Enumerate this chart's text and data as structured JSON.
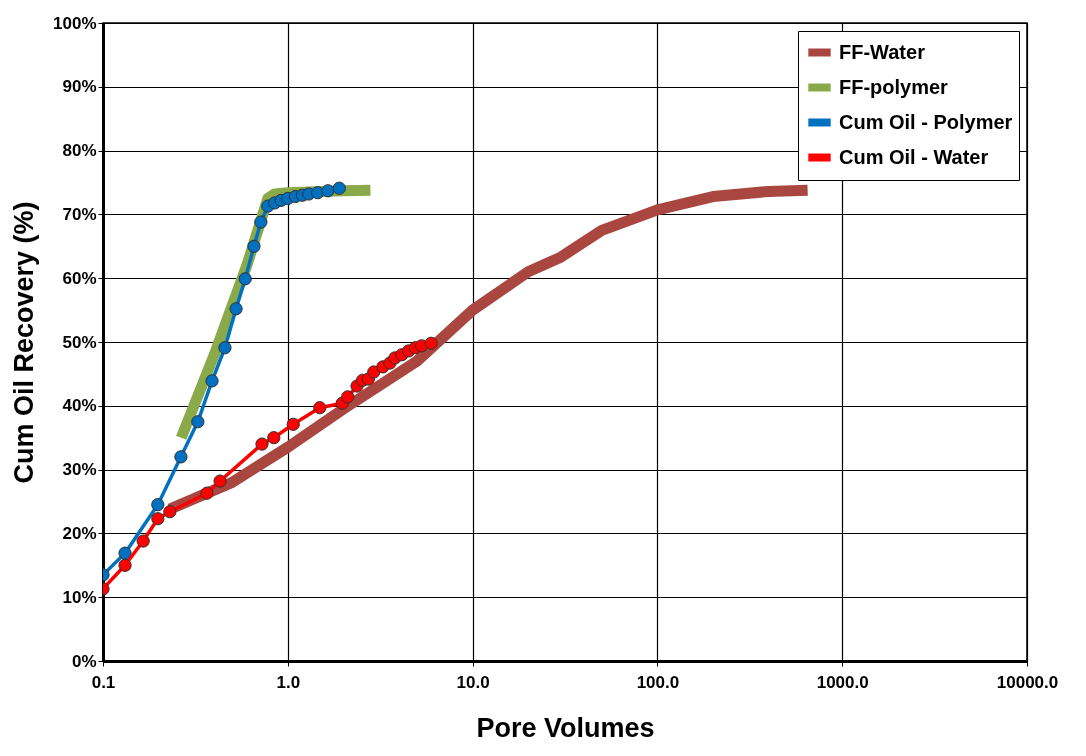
{
  "chart_data": {
    "type": "line",
    "xlabel": "Pore Volumes",
    "ylabel": "Cum  Oil Recovery (%)",
    "log": "x",
    "grid": true,
    "legend": "top right",
    "xlim": [
      0.1,
      10000
    ],
    "xticks": [
      0.1,
      {
        "value": 1,
        "label": "1.0"
      },
      {
        "value": 10,
        "label": "10.0"
      },
      {
        "value": 100,
        "label": "100.0"
      },
      {
        "value": 1000,
        "label": "1000.0"
      },
      {
        "value": 10000,
        "label": "10000.0"
      }
    ],
    "ylim": [
      0,
      100
    ],
    "yticks": [
      {
        "value": 0,
        "label": "0%"
      },
      {
        "value": 10,
        "label": "10%"
      },
      {
        "value": 20,
        "label": "20%"
      },
      {
        "value": 30,
        "label": "30%"
      },
      {
        "value": 40,
        "label": "40%"
      },
      {
        "value": 50,
        "label": "50%"
      },
      {
        "value": 60,
        "label": "60%"
      },
      {
        "value": 70,
        "label": "70%"
      },
      {
        "value": 80,
        "label": "80%"
      },
      {
        "value": 90,
        "label": "90%"
      },
      {
        "value": 100,
        "label": "100%"
      }
    ],
    "series": [
      {
        "name": "FF-Water",
        "color": "#a9463f",
        "marker": "none",
        "x": [
          0.23,
          0.5,
          1,
          2,
          5,
          10,
          20,
          30,
          50,
          100,
          200,
          400,
          650
        ],
        "values": [
          23.8,
          28,
          33.5,
          39.5,
          47,
          55,
          61,
          63.3,
          67.5,
          70.7,
          72.8,
          73.6,
          73.8
        ]
      },
      {
        "name": "FF-polymer",
        "color": "#8aaa4a",
        "marker": "none",
        "x": [
          0.265,
          0.4,
          0.6,
          0.78,
          0.85,
          1.0,
          2.0,
          2.8
        ],
        "values": [
          35,
          48,
          62,
          72.5,
          73.2,
          73.4,
          73.7,
          73.8
        ]
      },
      {
        "name": "Cum Oil - Polymer",
        "color": "#0070c0",
        "marker": "circle",
        "x": [
          0.1,
          0.1316,
          0.198,
          0.264,
          0.326,
          0.389,
          0.457,
          0.525,
          0.588,
          0.656,
          0.715,
          0.78,
          0.85,
          0.92,
          1.0,
          1.1,
          1.2,
          1.3,
          1.45,
          1.65,
          1.9
        ],
        "values": [
          13.5,
          16.9,
          24.5,
          32,
          37.5,
          43.9,
          49.1,
          55.2,
          59.9,
          65,
          68.8,
          71.3,
          71.8,
          72.2,
          72.5,
          72.8,
          73,
          73.2,
          73.4,
          73.7,
          74.1
        ]
      },
      {
        "name": "Cum Oil - Water",
        "color": "#ff0000",
        "marker": "circle",
        "x": [
          0.1,
          0.1316,
          0.165,
          0.198,
          0.23,
          0.365,
          0.43,
          0.725,
          0.84,
          1.07,
          1.49,
          1.97,
          2.11,
          2.37,
          2.54,
          2.73,
          2.92,
          3.27,
          3.57,
          3.8,
          4.14,
          4.5,
          4.9,
          5.3,
          5.97
        ],
        "values": [
          11.3,
          15,
          18.8,
          22.3,
          23.4,
          26.3,
          28.2,
          34,
          35,
          37.1,
          39.7,
          40.4,
          41.4,
          43.1,
          44,
          44.2,
          45.3,
          46.1,
          46.7,
          47.5,
          48,
          48.6,
          49.1,
          49.4,
          49.8
        ]
      }
    ]
  }
}
